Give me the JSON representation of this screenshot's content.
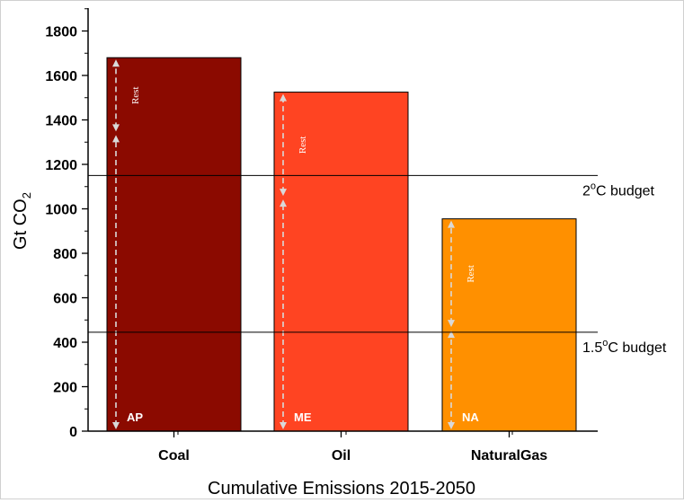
{
  "chart_data": {
    "type": "bar",
    "title": "",
    "xlabel": "Cumulative Emissions 2015-2050",
    "ylabel": {
      "base": "Gt CO",
      "sub": "2"
    },
    "ylim": [
      0,
      1900
    ],
    "yticks": [
      0,
      200,
      400,
      600,
      800,
      1000,
      1200,
      1400,
      1600,
      1800
    ],
    "grid": false,
    "categories": [
      "Coal",
      "Oil",
      "NaturalGas"
    ],
    "values": [
      1680,
      1525,
      955
    ],
    "colors": [
      "#8b0a00",
      "#ff4422",
      "#ff9000"
    ],
    "region_labels": [
      "AP",
      "ME",
      "NA"
    ],
    "region_segments": [
      {
        "region": "AP",
        "from": 0,
        "to": 1340
      },
      {
        "region": "ME",
        "from": 0,
        "to": 1050
      },
      {
        "region": "NA",
        "from": 0,
        "to": 460
      }
    ],
    "rest_label": "Rest",
    "budgets": [
      {
        "value": 1150,
        "label_pre": "2",
        "label_sup": "o",
        "label_post": "C budget"
      },
      {
        "value": 445,
        "label_pre": "1.5",
        "label_sup": "o",
        "label_post": "C budget"
      }
    ]
  }
}
